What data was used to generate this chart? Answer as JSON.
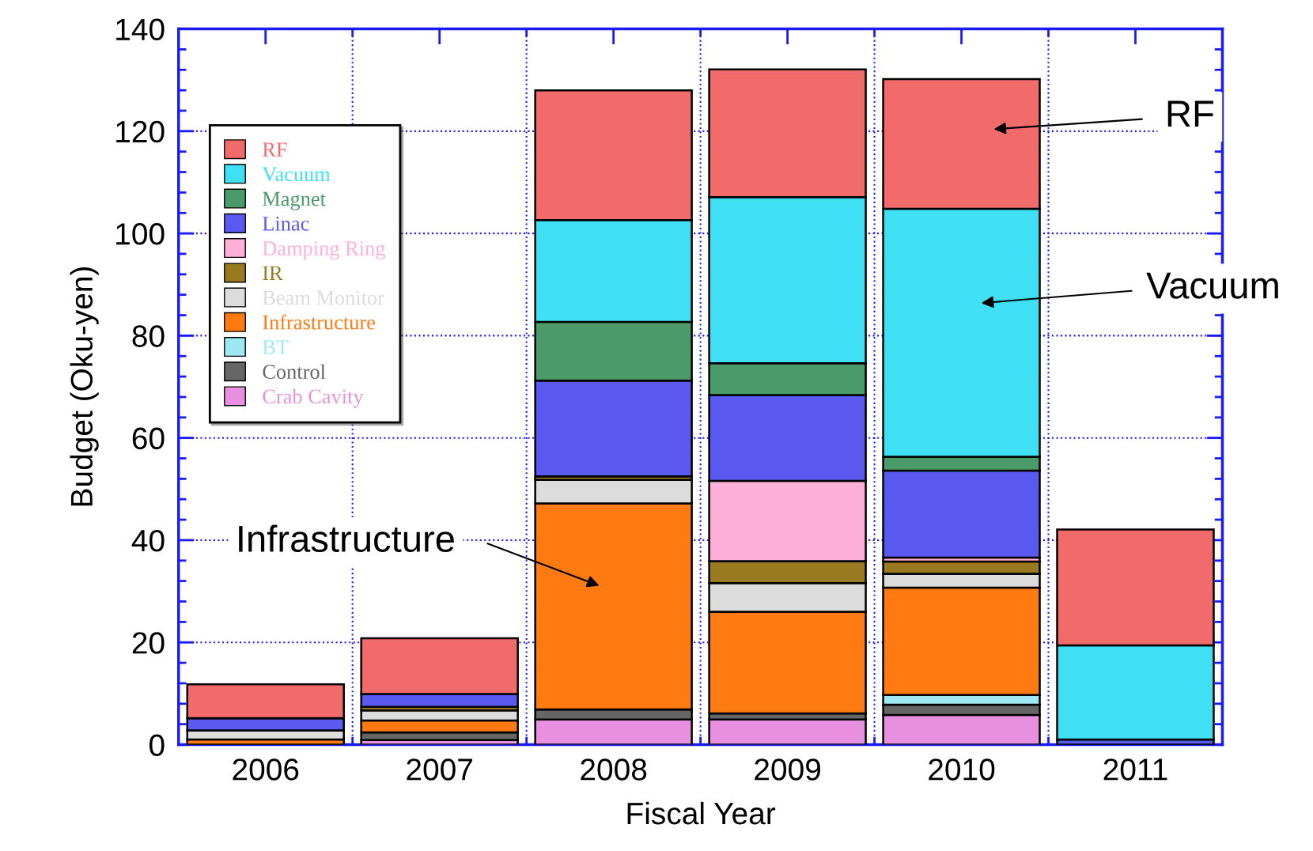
{
  "chart_data": {
    "type": "bar",
    "stacked": true,
    "xlabel": "Fiscal Year",
    "ylabel": "Budget (Oku-yen)",
    "categories": [
      "2006",
      "2007",
      "2008",
      "2009",
      "2010",
      "2011"
    ],
    "series": [
      {
        "name": "Crab Cavity",
        "color": "#e890e0",
        "values": [
          0,
          0.9,
          4.9,
          4.9,
          5.8,
          0
        ]
      },
      {
        "name": "Control",
        "color": "#666666",
        "values": [
          0,
          1.5,
          2.0,
          1.2,
          2.0,
          0
        ]
      },
      {
        "name": "BT",
        "color": "#9ee8f4",
        "values": [
          0,
          0,
          0,
          0,
          1.9,
          0
        ]
      },
      {
        "name": "Infrastructure",
        "color": "#ff7a10",
        "values": [
          1.0,
          2.3,
          40.3,
          19.9,
          21.0,
          0
        ]
      },
      {
        "name": "Beam Monitor",
        "color": "#dcdcdc",
        "values": [
          1.8,
          2.0,
          4.6,
          5.6,
          2.7,
          0
        ]
      },
      {
        "name": "IR",
        "color": "#9a7a20",
        "values": [
          0,
          0.7,
          0.7,
          4.3,
          2.4,
          0
        ]
      },
      {
        "name": "Damping Ring",
        "color": "#ffb0d8",
        "values": [
          0,
          0,
          0,
          15.7,
          0.8,
          0
        ]
      },
      {
        "name": "Linac",
        "color": "#5a5af0",
        "values": [
          2.4,
          2.5,
          18.7,
          16.8,
          17.0,
          1.0
        ]
      },
      {
        "name": "Magnet",
        "color": "#4a9a6a",
        "values": [
          0,
          0,
          11.5,
          6.2,
          2.7,
          0
        ]
      },
      {
        "name": "Vacuum",
        "color": "#40e0f4",
        "values": [
          0,
          0,
          19.9,
          32.5,
          48.5,
          18.4
        ]
      },
      {
        "name": "RF",
        "color": "#f26b6b",
        "values": [
          6.6,
          10.9,
          25.4,
          25.0,
          25.4,
          22.7
        ]
      }
    ],
    "ylim": [
      0,
      140
    ],
    "yticks": [
      0,
      20,
      40,
      60,
      80,
      100,
      120,
      140
    ],
    "grid": true,
    "legend": "top left",
    "annotations": [
      "RF",
      "Vacuum",
      "Infrastructure"
    ]
  }
}
